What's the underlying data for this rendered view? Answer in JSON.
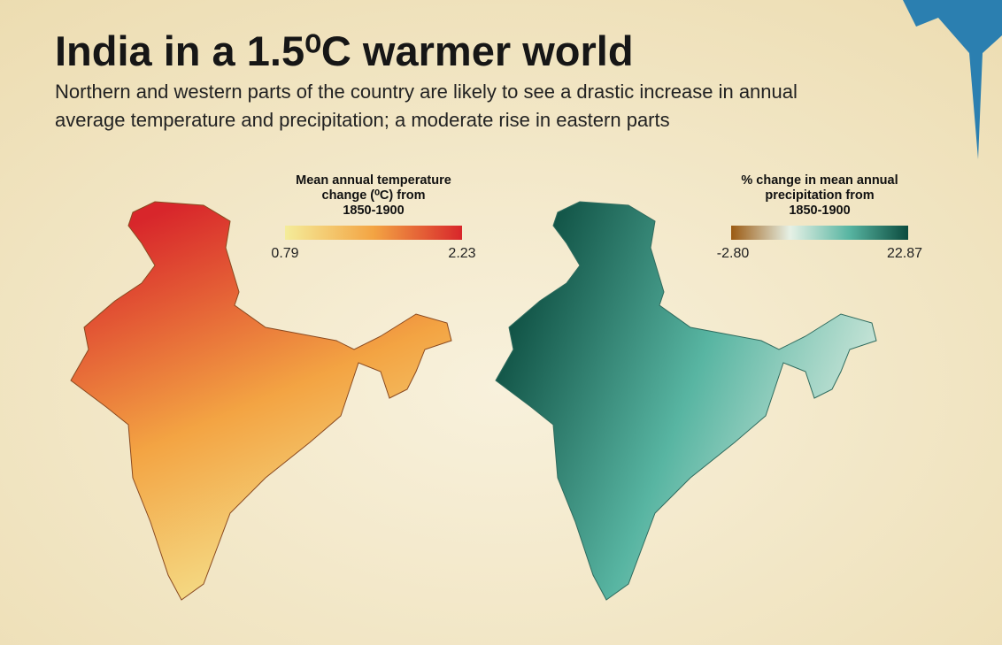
{
  "header": {
    "title": "India in a 1.5⁰C warmer world",
    "subtitle": [
      "Northern and western parts of the country are likely to see a drastic increase in annual",
      "average temperature and precipitation; a moderate rise in eastern parts"
    ]
  },
  "maps": [
    {
      "legend": {
        "title": [
          "Mean annual temperature",
          "change (⁰C) from",
          "1850-1900"
        ],
        "min": "0.79",
        "max": "2.23",
        "colors": [
          "#f4ec9a",
          "#f3a443",
          "#d8262b"
        ]
      }
    },
    {
      "legend": {
        "title": [
          "% change in mean annual",
          "precipitation from",
          "1850-1900"
        ],
        "min": "-2.80",
        "max": "22.87",
        "colors": [
          "#9b5a12",
          "#e6f1e6",
          "#58b5a2",
          "#0b4b3e"
        ]
      }
    }
  ]
}
